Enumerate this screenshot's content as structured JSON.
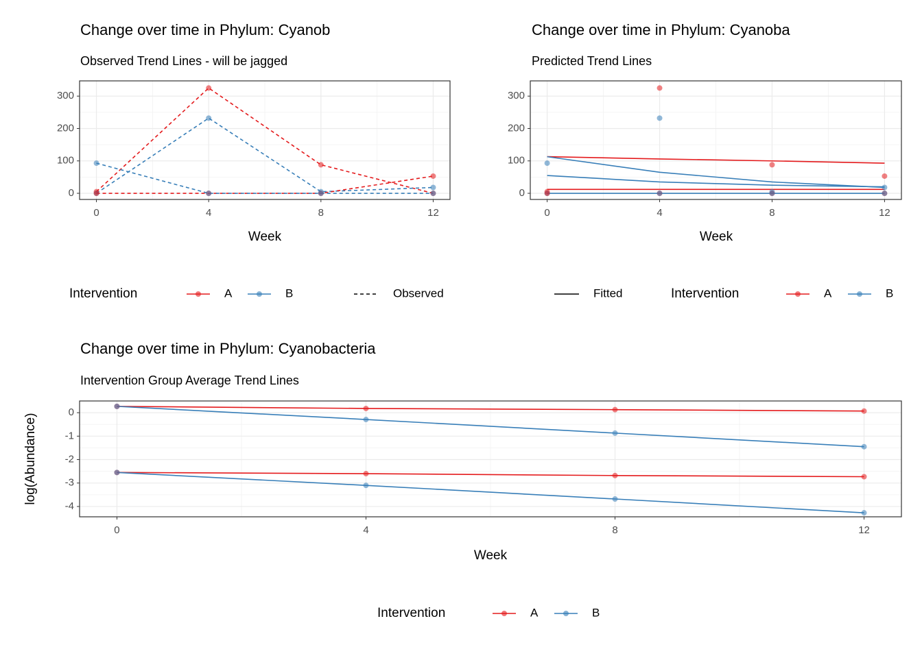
{
  "chart_data": [
    {
      "type": "line",
      "title": "Change over time in Phylum: Cyanob",
      "subtitle": "Observed Trend Lines - will be jagged",
      "xlabel": "Week",
      "x": [
        0,
        4,
        8,
        12
      ],
      "xlim": [
        -0.6,
        12.6
      ],
      "xticks": [
        0,
        4,
        8,
        12
      ],
      "ylim": [
        -19,
        347
      ],
      "yticks": [
        0,
        100,
        200,
        300
      ],
      "grid": true,
      "legend_title": "Intervention",
      "linetype_label": "Observed",
      "linetype": "dashed",
      "series": [
        {
          "name": "A",
          "color": "#e41a1c",
          "values": [
            5,
            325,
            88,
            0
          ],
          "line": "dashed",
          "points": true
        },
        {
          "name": "B",
          "color": "#377eb8",
          "values": [
            0,
            232,
            5,
            18
          ],
          "line": "dashed",
          "points": true
        },
        {
          "name": "A",
          "color": "#e41a1c",
          "values": [
            0,
            0,
            0,
            53
          ],
          "line": "dashed",
          "points": true
        },
        {
          "name": "B",
          "color": "#377eb8",
          "values": [
            93,
            0,
            0,
            0
          ],
          "line": "dashed",
          "points": true
        }
      ]
    },
    {
      "type": "line",
      "title": "Change over time in Phylum: Cyanoba",
      "subtitle": "Predicted Trend Lines",
      "xlabel": "Week",
      "x": [
        0,
        4,
        8,
        12
      ],
      "xlim": [
        -0.6,
        12.6
      ],
      "xticks": [
        0,
        4,
        8,
        12
      ],
      "ylim": [
        -19,
        347
      ],
      "yticks": [
        0,
        100,
        200,
        300
      ],
      "grid": true,
      "legend_title": "Intervention",
      "linetype_label": "Fitted",
      "linetype": "solid",
      "series": [
        {
          "name": "A",
          "color": "#e41a1c",
          "values": [
            5,
            325,
            88,
            0
          ],
          "points": true
        },
        {
          "name": "B",
          "color": "#377eb8",
          "values": [
            0,
            232,
            5,
            18
          ],
          "points": true
        },
        {
          "name": "A",
          "color": "#e41a1c",
          "values": [
            0,
            0,
            0,
            53
          ],
          "points": true
        },
        {
          "name": "B",
          "color": "#377eb8",
          "values": [
            93,
            0,
            0,
            0
          ],
          "points": true
        },
        {
          "name": "A",
          "color": "#e41a1c",
          "values": [
            113,
            106,
            100,
            93
          ],
          "line": "solid"
        },
        {
          "name": "A",
          "color": "#e41a1c",
          "values": [
            12,
            12,
            12,
            12
          ],
          "line": "solid"
        },
        {
          "name": "B",
          "color": "#377eb8",
          "values": [
            113,
            65,
            35,
            18
          ],
          "line": "solid"
        },
        {
          "name": "B",
          "color": "#377eb8",
          "values": [
            55,
            35,
            25,
            20
          ],
          "line": "solid"
        },
        {
          "name": "B",
          "color": "#377eb8",
          "values": [
            0,
            0,
            0,
            0
          ],
          "line": "solid"
        }
      ]
    },
    {
      "type": "line",
      "title": "Change over time in Phylum: Cyanobacteria",
      "subtitle": "Intervention Group Average Trend Lines",
      "xlabel": "Week",
      "ylabel": "log(Abundance)",
      "x": [
        0,
        4,
        8,
        12
      ],
      "xlim": [
        -0.6,
        12.6
      ],
      "xticks": [
        0,
        4,
        8,
        12
      ],
      "ylim": [
        -4.44,
        0.5
      ],
      "yticks": [
        -4,
        -3,
        -2,
        -1,
        0
      ],
      "grid": true,
      "legend_title": "Intervention",
      "series": [
        {
          "name": "A",
          "color": "#e41a1c",
          "values": [
            0.27,
            0.18,
            0.13,
            0.07
          ],
          "line": "solid",
          "points": true
        },
        {
          "name": "B",
          "color": "#377eb8",
          "values": [
            0.27,
            -0.29,
            -0.87,
            -1.45
          ],
          "line": "solid",
          "points": true
        },
        {
          "name": "A",
          "color": "#e41a1c",
          "values": [
            -2.55,
            -2.6,
            -2.68,
            -2.73
          ],
          "line": "solid",
          "points": true
        },
        {
          "name": "B",
          "color": "#377eb8",
          "values": [
            -2.55,
            -3.1,
            -3.68,
            -4.27
          ],
          "line": "solid",
          "points": true
        }
      ]
    }
  ]
}
